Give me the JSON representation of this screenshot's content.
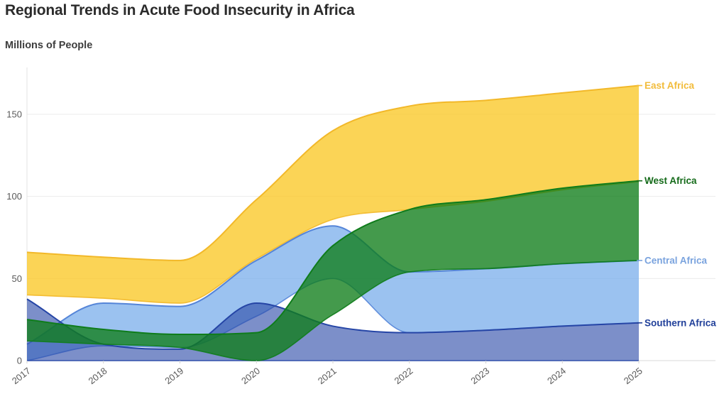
{
  "title": "Regional Trends in Acute Food Insecurity in Africa",
  "subtitle": "Millions of People",
  "chart_data": {
    "type": "area",
    "title": "Regional Trends in Acute Food Insecurity in Africa",
    "ylabel": "Millions of People",
    "x": [
      2017,
      2018,
      2019,
      2020,
      2021,
      2022,
      2023,
      2024,
      2025
    ],
    "x_tick_labels": [
      "2017",
      "2018",
      "2019",
      "2020",
      "2021",
      "2022",
      "2023",
      "2024",
      "2025"
    ],
    "y_ticks": [
      0,
      50,
      100,
      150
    ],
    "y_tick_labels": [
      "0",
      "50",
      "100",
      "150"
    ],
    "ylim": [
      0,
      176
    ],
    "grid": "horizontal",
    "legend_position": "right-edge-labels",
    "series": [
      {
        "name": "East Africa",
        "fill": "rgba(250,199,35,0.77)",
        "stroke": "#f2b829",
        "label_color": "#f2bc3b",
        "values": [
          26,
          25,
          26,
          36,
          54,
          63,
          61.5,
          59,
          58.5
        ],
        "band_bottom": [
          40,
          38,
          35,
          62,
          86,
          92,
          97,
          104,
          109
        ],
        "band_top": [
          66,
          63,
          61,
          98,
          140,
          155,
          158.5,
          163,
          167.5
        ]
      },
      {
        "name": "Central Africa",
        "fill": "rgba(121,174,235,0.75)",
        "stroke": "#5585d8",
        "label_color": "#7aa3de",
        "values": [
          10,
          26,
          25,
          34,
          32,
          37,
          37.5,
          38,
          38
        ],
        "band_bottom": [
          0,
          9,
          8,
          27,
          50,
          17,
          18.5,
          21,
          23
        ],
        "band_top": [
          10,
          35,
          33,
          61,
          82,
          54,
          56,
          59,
          61
        ]
      },
      {
        "name": "Southern Africa",
        "fill": "rgba(43,74,168,0.62)",
        "stroke": "#2545a6",
        "label_color": "#21409a",
        "values": [
          37.5,
          10,
          7,
          35,
          21,
          17,
          18.5,
          21,
          23
        ],
        "band_bottom": [
          0,
          0,
          0,
          0,
          0,
          0,
          0,
          0,
          0
        ],
        "band_top": [
          37.5,
          10,
          7,
          35,
          21,
          17,
          18.5,
          21,
          23
        ]
      },
      {
        "name": "West Africa",
        "fill": "rgba(15,125,25,0.78)",
        "stroke": "#0f7c1b",
        "label_color": "#156b1a",
        "values": [
          13,
          9,
          8,
          17,
          42,
          38,
          42,
          46,
          48.5
        ],
        "band_bottom": [
          12,
          10,
          8,
          0,
          28,
          54,
          56,
          59,
          61
        ],
        "band_top": [
          25,
          19,
          16,
          17,
          70,
          92,
          98,
          105,
          109.5
        ]
      }
    ]
  }
}
